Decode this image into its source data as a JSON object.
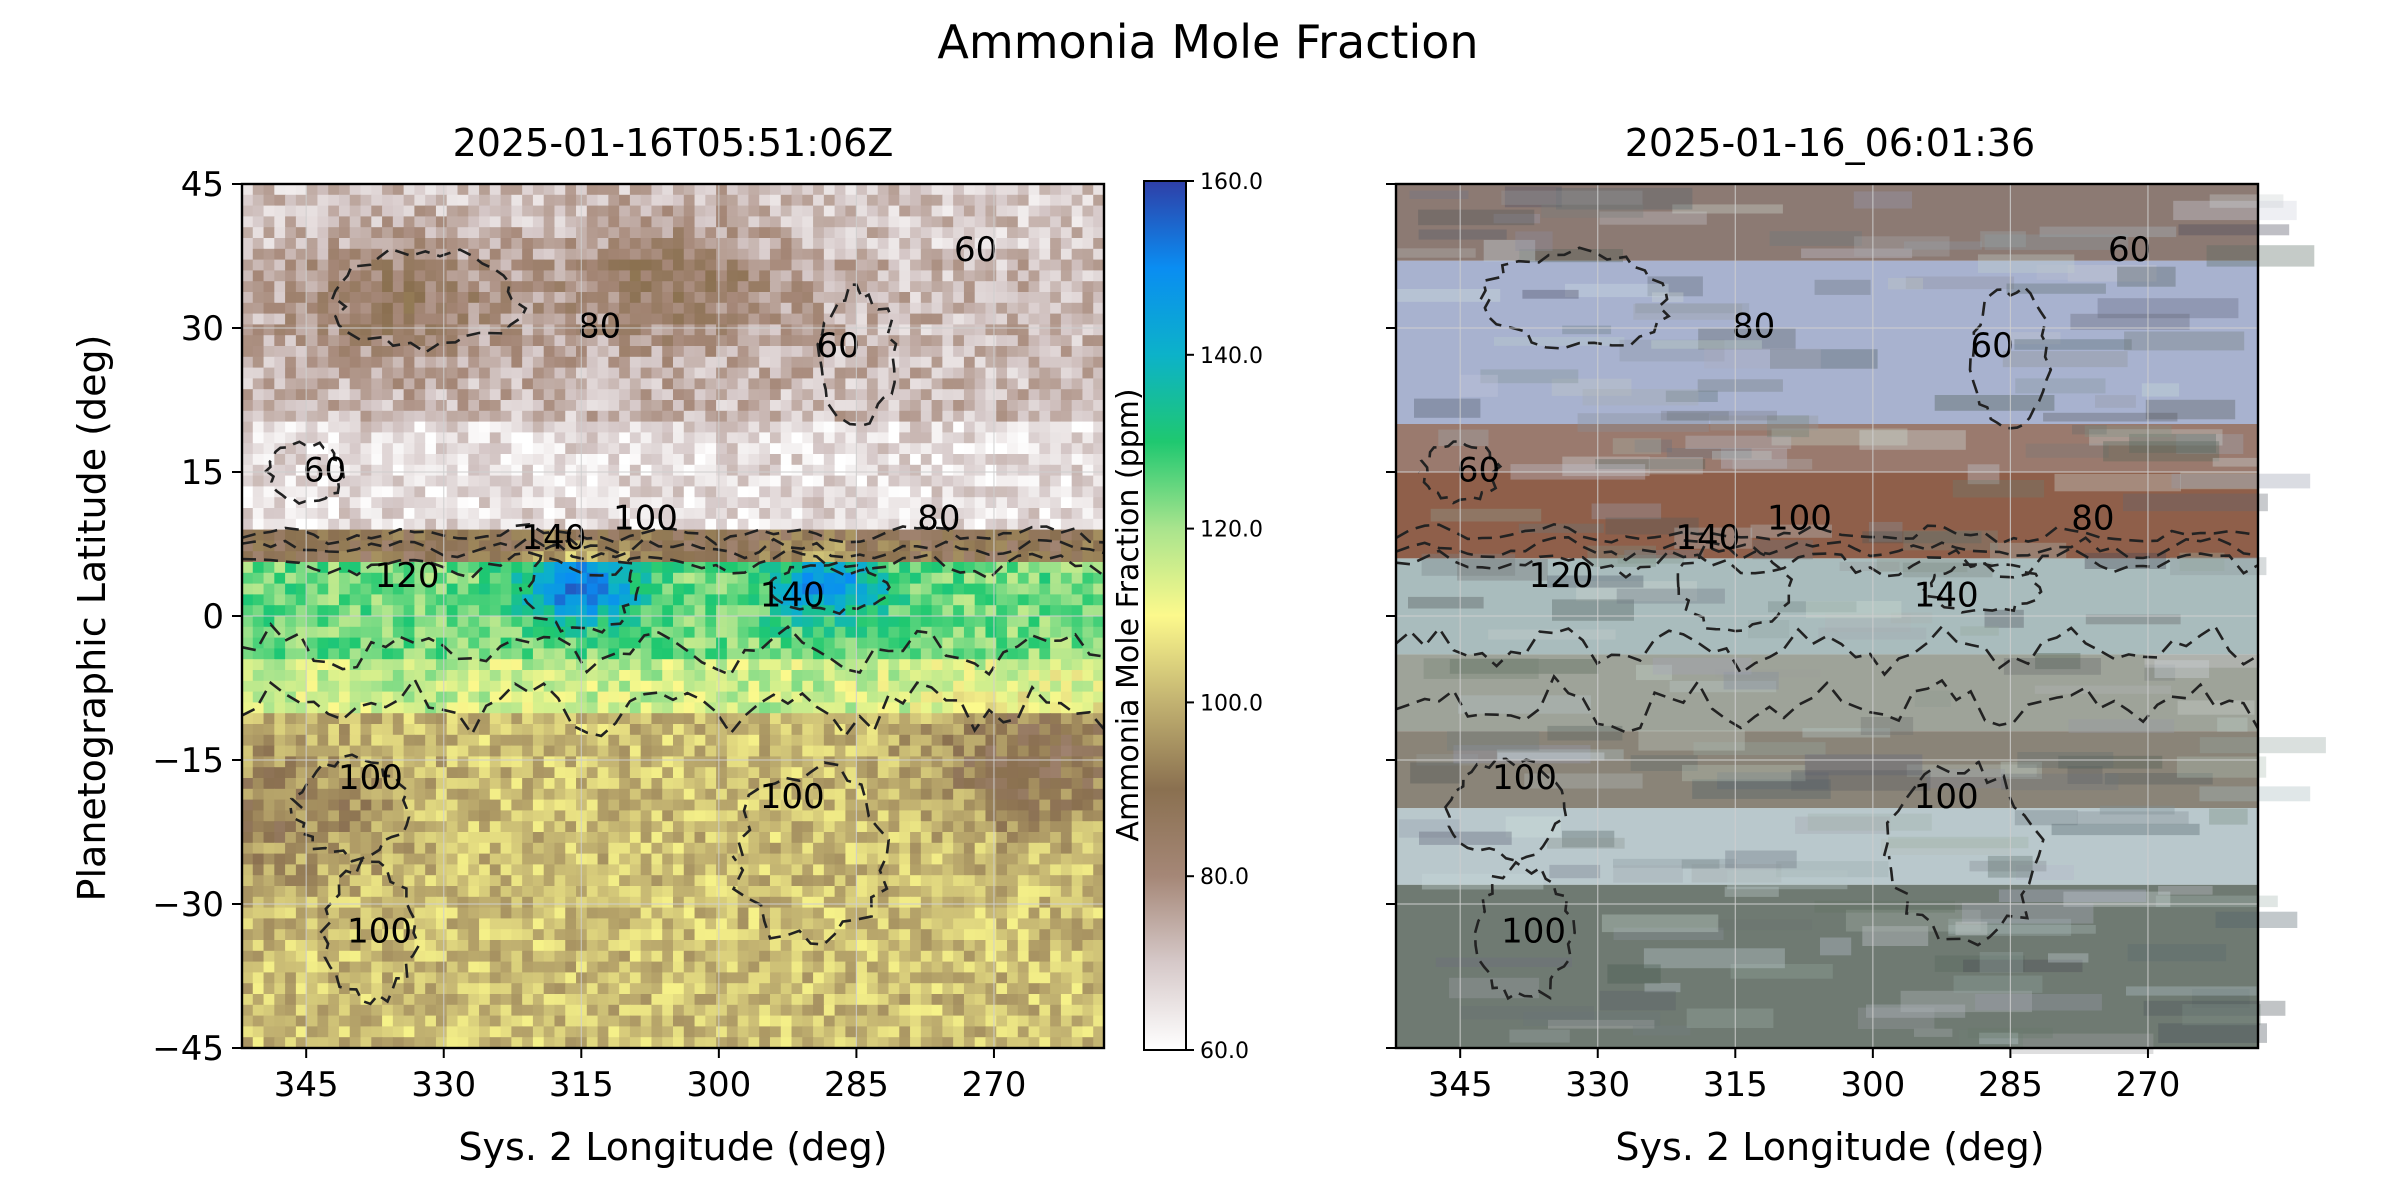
{
  "figure": {
    "title": "Ammonia Mole Fraction"
  },
  "colormap": {
    "stops": [
      [
        60,
        "#ffffff"
      ],
      [
        70,
        "#d6c9c9"
      ],
      [
        80,
        "#a58777"
      ],
      [
        90,
        "#8a7050"
      ],
      [
        100,
        "#c2b271"
      ],
      [
        110,
        "#fcf98c"
      ],
      [
        120,
        "#a9e48d"
      ],
      [
        130,
        "#1fc870"
      ],
      [
        140,
        "#0cb2c9"
      ],
      [
        150,
        "#0a8df2"
      ],
      [
        160,
        "#2f3fa7"
      ]
    ]
  },
  "chart_data": [
    {
      "type": "heatmap",
      "title": "2025-01-16T05:51:06Z",
      "xlabel": "Sys. 2 Longitude (deg)",
      "ylabel": "Planetographic Latitude (deg)",
      "xlim": [
        352,
        258
      ],
      "ylim": [
        -45,
        45
      ],
      "xticks": [
        345,
        330,
        315,
        300,
        285,
        270
      ],
      "yticks": [
        45,
        30,
        15,
        0,
        -15,
        -30,
        -45
      ],
      "grid": true,
      "field": {
        "units": "ppm",
        "background": [
          {
            "lat_from": 45,
            "lat_to": 37,
            "value": 70
          },
          {
            "lat_from": 37,
            "lat_to": 20,
            "value": 72
          },
          {
            "lat_from": 20,
            "lat_to": 9,
            "value": 66
          },
          {
            "lat_from": 9,
            "lat_to": 6,
            "value": 88
          },
          {
            "lat_from": 6,
            "lat_to": -4,
            "value": 124
          },
          {
            "lat_from": -4,
            "lat_to": -10,
            "value": 116
          },
          {
            "lat_from": -10,
            "lat_to": -45,
            "value": 102
          }
        ],
        "features": [
          {
            "lon": 315,
            "lat": 3,
            "peak_ppm": 155
          },
          {
            "lon": 288,
            "lat": 3,
            "peak_ppm": 149
          },
          {
            "lon": 305,
            "lat": 35,
            "peak_ppm": 86
          },
          {
            "lon": 335,
            "lat": 33,
            "peak_ppm": 85
          },
          {
            "lon": 265,
            "lat": -15,
            "peak_ppm": 88
          },
          {
            "lon": 348,
            "lat": -20,
            "peak_ppm": 92
          }
        ]
      },
      "contour_labels": [
        {
          "text": "80",
          "lon": 313,
          "lat": 29
        },
        {
          "text": "60",
          "lon": 287,
          "lat": 27
        },
        {
          "text": "60",
          "lon": 272,
          "lat": 37
        },
        {
          "text": "60",
          "lon": 343,
          "lat": 14
        },
        {
          "text": "140",
          "lon": 318,
          "lat": 7
        },
        {
          "text": "100",
          "lon": 308,
          "lat": 9
        },
        {
          "text": "80",
          "lon": 276,
          "lat": 9
        },
        {
          "text": "120",
          "lon": 334,
          "lat": 3
        },
        {
          "text": "140",
          "lon": 292,
          "lat": 1
        },
        {
          "text": "100",
          "lon": 338,
          "lat": -18
        },
        {
          "text": "100",
          "lon": 292,
          "lat": -20
        },
        {
          "text": "100",
          "lon": 337,
          "lat": -34
        }
      ]
    },
    {
      "type": "heatmap",
      "title": "2025-01-16_06:01:36",
      "xlabel": "Sys. 2 Longitude (deg)",
      "ylabel": "",
      "xlim": [
        352,
        258
      ],
      "ylim": [
        -45,
        45
      ],
      "xticks": [
        345,
        330,
        315,
        300,
        285,
        270
      ],
      "yticks": [
        45,
        30,
        15,
        0,
        -15,
        -30,
        -45
      ],
      "grid": true,
      "contour_labels": [
        {
          "text": "80",
          "lon": 313,
          "lat": 29
        },
        {
          "text": "60",
          "lon": 287,
          "lat": 27
        },
        {
          "text": "60",
          "lon": 272,
          "lat": 37
        },
        {
          "text": "60",
          "lon": 343,
          "lat": 14
        },
        {
          "text": "140",
          "lon": 318,
          "lat": 7
        },
        {
          "text": "100",
          "lon": 308,
          "lat": 9
        },
        {
          "text": "80",
          "lon": 276,
          "lat": 9
        },
        {
          "text": "120",
          "lon": 334,
          "lat": 3
        },
        {
          "text": "140",
          "lon": 292,
          "lat": 1
        },
        {
          "text": "100",
          "lon": 338,
          "lat": -18
        },
        {
          "text": "100",
          "lon": 292,
          "lat": -20
        },
        {
          "text": "100",
          "lon": 337,
          "lat": -34
        }
      ]
    },
    {
      "type": "colorbar",
      "label": "Ammonia Mole Fraction (ppm)",
      "range": [
        60,
        160
      ],
      "ticks": [
        "60.0",
        "80.0",
        "100.0",
        "120.0",
        "140.0",
        "160.0"
      ]
    }
  ]
}
